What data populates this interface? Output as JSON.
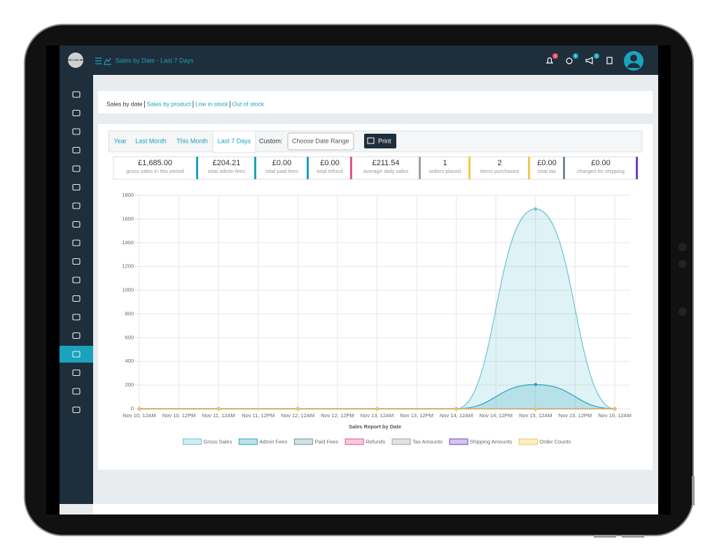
{
  "header": {
    "logo": "YOUR LOGO HERE",
    "title": "Sales by Date - Last 7 Days",
    "badges": [
      3,
      0,
      0
    ]
  },
  "nav": [
    "Sales by date",
    "Sales by product",
    "Low in stock",
    "Out of stock"
  ],
  "tabs": {
    "items": [
      "Year",
      "Last Month",
      "This Month",
      "Last 7 Days"
    ],
    "active": 3,
    "custom_label": "Custom:",
    "date_placeholder": "Choose Date Range",
    "print": "Print"
  },
  "stats": [
    {
      "value": "£1,685.00",
      "label": "gross sales in this period"
    },
    {
      "value": "£204.21",
      "label": "total admin fees"
    },
    {
      "value": "£0.00",
      "label": "total paid fees"
    },
    {
      "value": "£0.00",
      "label": "total refund"
    },
    {
      "value": "£211.54",
      "label": "average daily sales"
    },
    {
      "value": "1",
      "label": "orders placed"
    },
    {
      "value": "2",
      "label": "items purchased"
    },
    {
      "value": "£0.00",
      "label": "total tax"
    },
    {
      "value": "£0.00",
      "label": "charged for shipping"
    }
  ],
  "chart_data": {
    "type": "area",
    "x_label": "Sales Report by Date",
    "x": [
      "Nov 10, 12AM",
      "Nov 11, 12AM",
      "Nov 12, 12AM",
      "Nov 13, 12AM",
      "Nov 14, 12AM",
      "Nov 15, 12AM",
      "Nov 16, 12AM"
    ],
    "xticks": [
      "Nov 10, 12AM",
      "Nov 10, 12PM",
      "Nov 11, 12AM",
      "Nov 11, 12PM",
      "Nov 12, 12AM",
      "Nov 12, 12PM",
      "Nov 13, 12AM",
      "Nov 13, 12PM",
      "Nov 14, 12AM",
      "Nov 14, 12PM",
      "Nov 15, 12AM",
      "Nov 15, 12PM",
      "Nov 16, 12AM"
    ],
    "ylim": [
      0,
      1800
    ],
    "yticks": [
      0,
      200,
      400,
      600,
      800,
      1000,
      1200,
      1400,
      1600,
      1800
    ],
    "grid": true,
    "series": [
      {
        "name": "Gross Sales",
        "color": "#6cc3d5",
        "values": [
          0,
          0,
          0,
          0,
          0,
          1685,
          0
        ]
      },
      {
        "name": "Admin Fees",
        "color": "#2aa3bb",
        "values": [
          0,
          0,
          0,
          0,
          0,
          204.21,
          0
        ]
      },
      {
        "name": "Paid Fees",
        "color": "#6e95a3",
        "values": [
          0,
          0,
          0,
          0,
          0,
          0,
          0
        ]
      },
      {
        "name": "Refunds",
        "color": "#e6508e",
        "values": [
          0,
          0,
          0,
          0,
          0,
          0,
          0
        ]
      },
      {
        "name": "Tax Amounts",
        "color": "#98a2a8",
        "values": [
          0,
          0,
          0,
          0,
          0,
          0,
          0
        ]
      },
      {
        "name": "Shipping Amounts",
        "color": "#6f42c1",
        "values": [
          0,
          0,
          0,
          0,
          0,
          0,
          0
        ]
      },
      {
        "name": "Order Counts",
        "color": "#f3c74b",
        "values": [
          0,
          0,
          0,
          0,
          0,
          1,
          0
        ]
      }
    ]
  }
}
